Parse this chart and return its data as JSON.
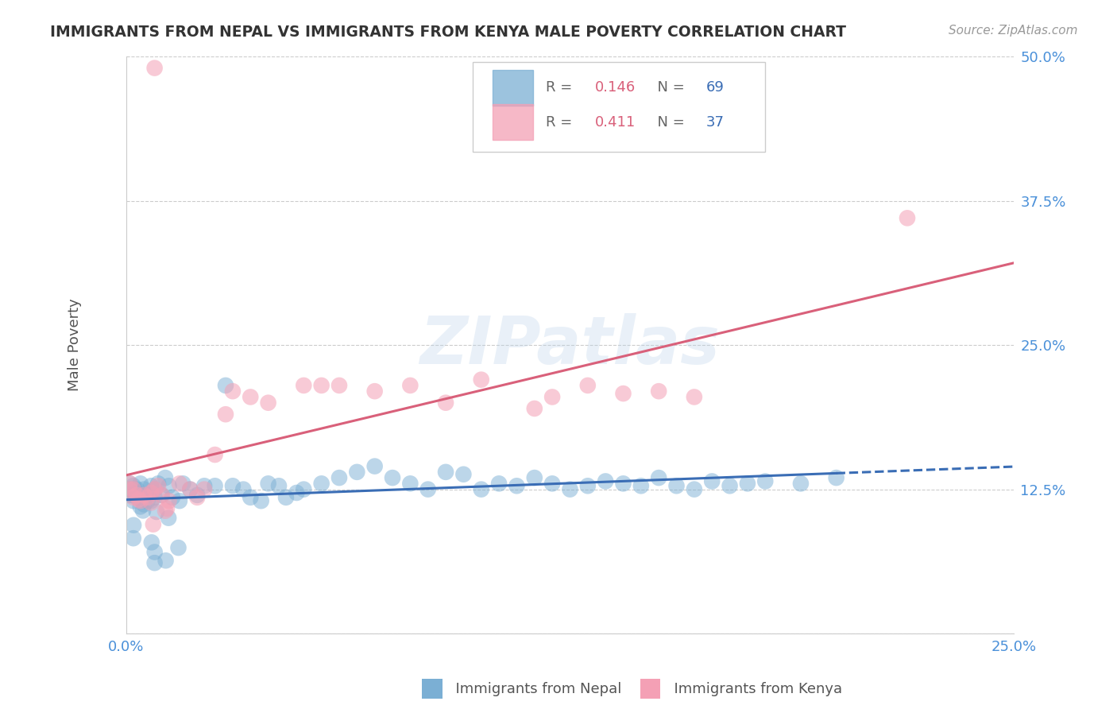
{
  "title": "IMMIGRANTS FROM NEPAL VS IMMIGRANTS FROM KENYA MALE POVERTY CORRELATION CHART",
  "source": "Source: ZipAtlas.com",
  "ylabel": "Male Poverty",
  "xlim": [
    0.0,
    0.25
  ],
  "ylim": [
    0.0,
    0.5
  ],
  "xticks": [
    0.0,
    0.05,
    0.1,
    0.15,
    0.2,
    0.25
  ],
  "yticks": [
    0.0,
    0.125,
    0.25,
    0.375,
    0.5
  ],
  "xticklabels": [
    "0.0%",
    "",
    "",
    "",
    "",
    "25.0%"
  ],
  "yticklabels": [
    "",
    "12.5%",
    "25.0%",
    "37.5%",
    "50.0%"
  ],
  "nepal_color": "#7bafd4",
  "kenya_color": "#f4a0b5",
  "nepal_line_color": "#3a6db5",
  "kenya_line_color": "#d9607a",
  "legend_R_nepal": "0.146",
  "legend_N_nepal": "69",
  "legend_R_kenya": "0.411",
  "legend_N_kenya": "37",
  "watermark": "ZIPatlas",
  "background_color": "#ffffff",
  "grid_color": "#cccccc",
  "nepal_x": [
    0.001,
    0.001,
    0.001,
    0.002,
    0.002,
    0.002,
    0.003,
    0.003,
    0.003,
    0.004,
    0.004,
    0.004,
    0.005,
    0.005,
    0.006,
    0.006,
    0.007,
    0.007,
    0.008,
    0.008,
    0.009,
    0.01,
    0.011,
    0.012,
    0.013,
    0.015,
    0.016,
    0.018,
    0.02,
    0.022,
    0.025,
    0.028,
    0.03,
    0.033,
    0.035,
    0.038,
    0.04,
    0.043,
    0.045,
    0.048,
    0.05,
    0.055,
    0.06,
    0.065,
    0.07,
    0.075,
    0.08,
    0.085,
    0.09,
    0.095,
    0.1,
    0.105,
    0.11,
    0.115,
    0.12,
    0.125,
    0.13,
    0.135,
    0.14,
    0.145,
    0.15,
    0.155,
    0.16,
    0.165,
    0.17,
    0.175,
    0.18,
    0.19,
    0.2
  ],
  "nepal_y": [
    0.12,
    0.13,
    0.125,
    0.115,
    0.12,
    0.128,
    0.118,
    0.122,
    0.125,
    0.11,
    0.13,
    0.118,
    0.112,
    0.125,
    0.115,
    0.12,
    0.128,
    0.115,
    0.118,
    0.125,
    0.13,
    0.12,
    0.135,
    0.128,
    0.118,
    0.115,
    0.13,
    0.125,
    0.12,
    0.128,
    0.128,
    0.215,
    0.128,
    0.125,
    0.118,
    0.115,
    0.13,
    0.128,
    0.118,
    0.122,
    0.125,
    0.13,
    0.135,
    0.14,
    0.145,
    0.135,
    0.13,
    0.125,
    0.14,
    0.138,
    0.125,
    0.13,
    0.128,
    0.135,
    0.13,
    0.125,
    0.128,
    0.132,
    0.13,
    0.128,
    0.135,
    0.128,
    0.125,
    0.132,
    0.128,
    0.13,
    0.132,
    0.13,
    0.135
  ],
  "kenya_x": [
    0.001,
    0.001,
    0.002,
    0.002,
    0.003,
    0.004,
    0.005,
    0.006,
    0.007,
    0.008,
    0.009,
    0.01,
    0.012,
    0.015,
    0.018,
    0.02,
    0.022,
    0.025,
    0.028,
    0.03,
    0.035,
    0.04,
    0.05,
    0.055,
    0.06,
    0.07,
    0.08,
    0.09,
    0.1,
    0.115,
    0.12,
    0.13,
    0.14,
    0.15,
    0.16,
    0.22,
    0.008
  ],
  "kenya_y": [
    0.13,
    0.125,
    0.118,
    0.125,
    0.12,
    0.115,
    0.12,
    0.118,
    0.122,
    0.125,
    0.128,
    0.12,
    0.115,
    0.13,
    0.125,
    0.118,
    0.125,
    0.155,
    0.19,
    0.21,
    0.205,
    0.2,
    0.215,
    0.215,
    0.215,
    0.21,
    0.215,
    0.2,
    0.22,
    0.195,
    0.205,
    0.215,
    0.208,
    0.21,
    0.205,
    0.36,
    0.49
  ]
}
